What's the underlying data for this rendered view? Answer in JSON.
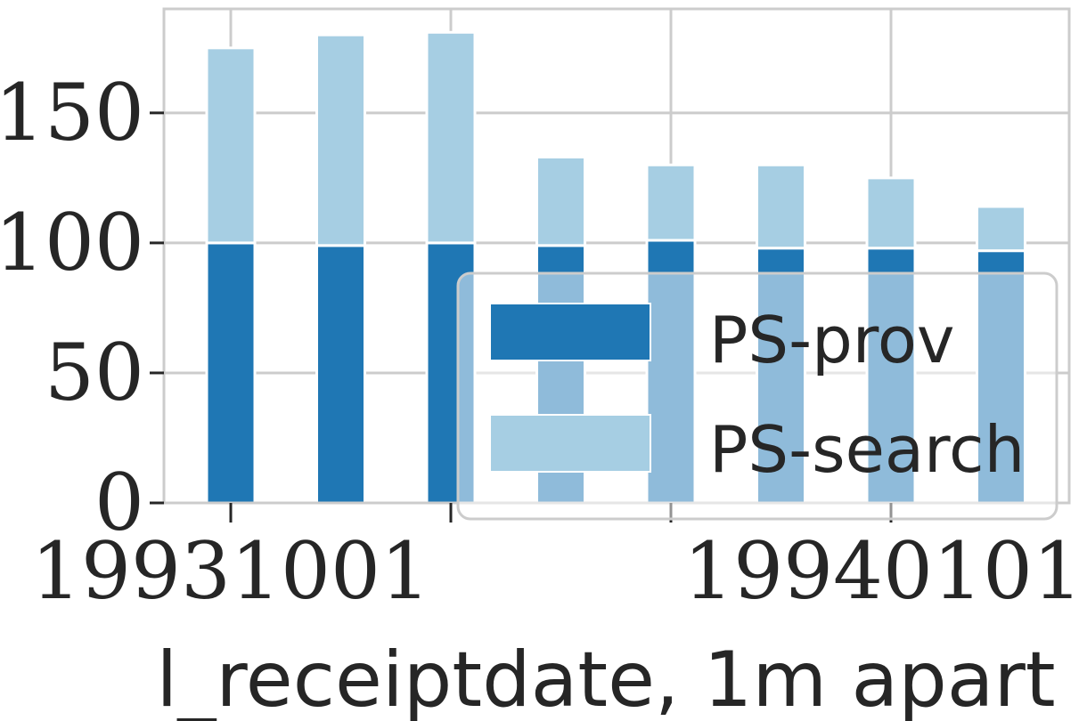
{
  "chart_data": {
    "type": "bar",
    "stacked": true,
    "x": [
      0,
      1,
      2,
      3,
      4,
      5,
      6,
      7
    ],
    "series": [
      {
        "name": "PS-prov",
        "values": [
          100,
          99,
          100,
          99,
          101,
          98,
          98,
          97
        ],
        "color": "#1f77b4"
      },
      {
        "name": "PS-search",
        "values": [
          75,
          81,
          81,
          34,
          29,
          32,
          27,
          17
        ],
        "color": "#a6cee3"
      }
    ],
    "xticks": [
      {
        "x": 0,
        "label": "19931001"
      },
      {
        "x": 2,
        "label": ""
      },
      {
        "x": 4,
        "label": ""
      },
      {
        "x": 6,
        "label": "19940101"
      }
    ],
    "yticks": [
      0,
      50,
      100,
      150
    ],
    "xlabel": "l_receiptdate, 1m apart",
    "ylabel": "",
    "ylim": [
      0,
      190
    ],
    "grid": true,
    "legend": {
      "position": "lower-right",
      "entries": [
        "PS-prov",
        "PS-search"
      ]
    },
    "axis_color": "#cccccc",
    "text_color": "#262626",
    "legend_face": "#ffffff"
  }
}
